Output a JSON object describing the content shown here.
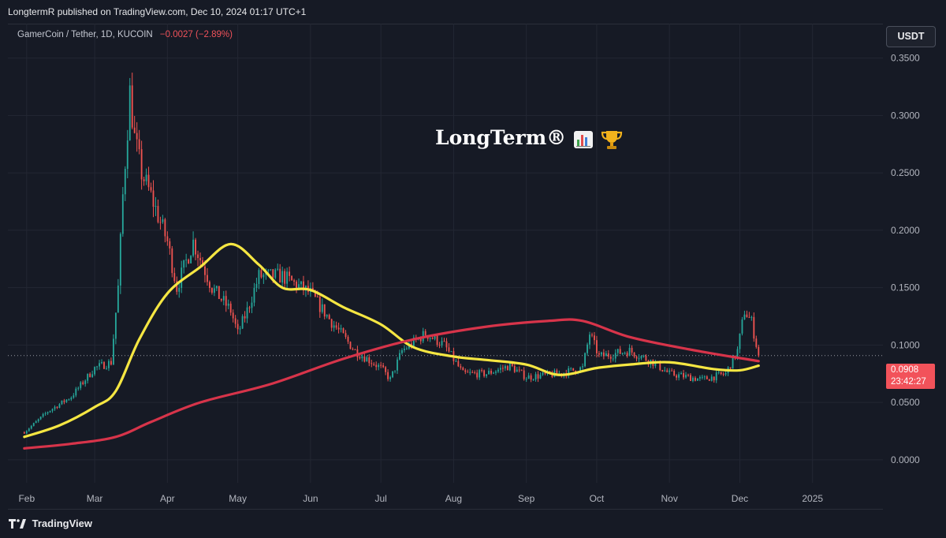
{
  "header": {
    "publish_text": "LongtermR published on TradingView.com, Dec 10, 2024 01:17 UTC+1"
  },
  "symbol": {
    "name": "GamerCoin / Tether, 1D, KUCOIN",
    "change": "−0.0027 (−2.89%)"
  },
  "currency": "USDT",
  "watermark": {
    "text": "LongTerm®"
  },
  "price_badge": {
    "value": "0.0908",
    "timer": "23:42:27"
  },
  "footer": {
    "logo_text": "TradingView"
  },
  "colors": {
    "up": "#26a69a",
    "down": "#ef5350",
    "ma_fast": "#f5e642",
    "ma_slow": "#d7344a",
    "grid": "#232733",
    "badge": "#f2525a"
  },
  "chart_data": {
    "type": "candlestick",
    "x_ticks": [
      "Feb",
      "Mar",
      "Apr",
      "May",
      "Jun",
      "Jul",
      "Aug",
      "Sep",
      "Oct",
      "Nov",
      "Dec",
      "2025"
    ],
    "y_ticks": [
      "0.3500",
      "0.3000",
      "0.2500",
      "0.2000",
      "0.1500",
      "0.1000",
      "0.0500",
      "0.0000"
    ],
    "ylim": [
      -0.02,
      0.38
    ],
    "last_price": 0.0908,
    "close_anchors": [
      [
        "2024-01-31",
        0.024
      ],
      [
        "2024-02-10",
        0.042
      ],
      [
        "2024-02-20",
        0.055
      ],
      [
        "2024-03-01",
        0.08
      ],
      [
        "2024-03-08",
        0.085
      ],
      [
        "2024-03-11",
        0.15
      ],
      [
        "2024-03-13",
        0.23
      ],
      [
        "2024-03-16",
        0.32
      ],
      [
        "2024-03-18",
        0.28
      ],
      [
        "2024-03-21",
        0.25
      ],
      [
        "2024-03-25",
        0.23
      ],
      [
        "2024-04-01",
        0.19
      ],
      [
        "2024-04-05",
        0.15
      ],
      [
        "2024-04-12",
        0.19
      ],
      [
        "2024-04-20",
        0.15
      ],
      [
        "2024-04-28",
        0.13
      ],
      [
        "2024-05-01",
        0.11
      ],
      [
        "2024-05-05",
        0.13
      ],
      [
        "2024-05-10",
        0.16
      ],
      [
        "2024-05-20",
        0.16
      ],
      [
        "2024-06-01",
        0.145
      ],
      [
        "2024-06-10",
        0.12
      ],
      [
        "2024-06-20",
        0.095
      ],
      [
        "2024-07-01",
        0.08
      ],
      [
        "2024-07-05",
        0.07
      ],
      [
        "2024-07-10",
        0.095
      ],
      [
        "2024-07-20",
        0.11
      ],
      [
        "2024-07-28",
        0.1
      ],
      [
        "2024-08-05",
        0.075
      ],
      [
        "2024-08-15",
        0.075
      ],
      [
        "2024-08-25",
        0.082
      ],
      [
        "2024-09-01",
        0.072
      ],
      [
        "2024-09-15",
        0.075
      ],
      [
        "2024-09-25",
        0.08
      ],
      [
        "2024-09-28",
        0.11
      ],
      [
        "2024-10-02",
        0.09
      ],
      [
        "2024-10-15",
        0.095
      ],
      [
        "2024-10-25",
        0.085
      ],
      [
        "2024-11-01",
        0.075
      ],
      [
        "2024-11-15",
        0.07
      ],
      [
        "2024-11-25",
        0.075
      ],
      [
        "2024-11-30",
        0.095
      ],
      [
        "2024-12-03",
        0.13
      ],
      [
        "2024-12-06",
        0.12
      ],
      [
        "2024-12-09",
        0.0908
      ]
    ],
    "series": [
      {
        "name": "",
        "color": "#f5e642",
        "points": [
          [
            "2024-01-31",
            0.02
          ],
          [
            "2024-02-15",
            0.03
          ],
          [
            "2024-03-01",
            0.046
          ],
          [
            "2024-03-10",
            0.06
          ],
          [
            "2024-03-20",
            0.105
          ],
          [
            "2024-04-01",
            0.145
          ],
          [
            "2024-04-15",
            0.168
          ],
          [
            "2024-04-28",
            0.188
          ],
          [
            "2024-05-10",
            0.17
          ],
          [
            "2024-05-20",
            0.15
          ],
          [
            "2024-06-01",
            0.148
          ],
          [
            "2024-06-15",
            0.133
          ],
          [
            "2024-07-01",
            0.118
          ],
          [
            "2024-07-15",
            0.098
          ],
          [
            "2024-08-01",
            0.09
          ],
          [
            "2024-08-15",
            0.087
          ],
          [
            "2024-09-01",
            0.083
          ],
          [
            "2024-09-15",
            0.074
          ],
          [
            "2024-10-01",
            0.08
          ],
          [
            "2024-10-15",
            0.083
          ],
          [
            "2024-11-01",
            0.085
          ],
          [
            "2024-11-20",
            0.079
          ],
          [
            "2024-12-01",
            0.078
          ],
          [
            "2024-12-09",
            0.082
          ]
        ]
      },
      {
        "name": "",
        "color": "#d7344a",
        "points": [
          [
            "2024-01-31",
            0.01
          ],
          [
            "2024-02-20",
            0.014
          ],
          [
            "2024-03-10",
            0.02
          ],
          [
            "2024-03-25",
            0.033
          ],
          [
            "2024-04-15",
            0.05
          ],
          [
            "2024-05-15",
            0.066
          ],
          [
            "2024-06-15",
            0.088
          ],
          [
            "2024-07-15",
            0.105
          ],
          [
            "2024-08-15",
            0.116
          ],
          [
            "2024-09-10",
            0.121
          ],
          [
            "2024-09-25",
            0.121
          ],
          [
            "2024-10-15",
            0.107
          ],
          [
            "2024-11-10",
            0.096
          ],
          [
            "2024-12-09",
            0.086
          ]
        ]
      }
    ]
  }
}
